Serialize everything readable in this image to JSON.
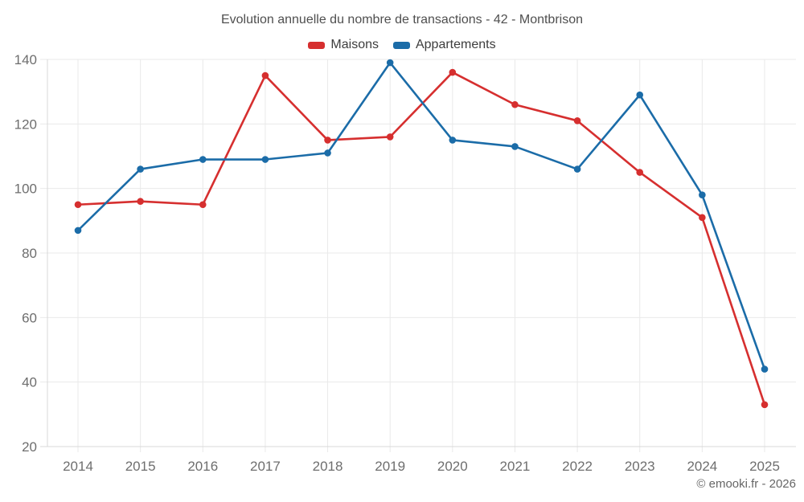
{
  "chart": {
    "title": "Evolution annuelle du nombre de transactions - 42 - Montbrison",
    "copyright": "© emooki.fr - 2026"
  },
  "chart_data": {
    "type": "line",
    "title": "Evolution annuelle du nombre de transactions - 42 - Montbrison",
    "categories": [
      "2014",
      "2015",
      "2016",
      "2017",
      "2018",
      "2019",
      "2020",
      "2021",
      "2022",
      "2023",
      "2024",
      "2025"
    ],
    "series": [
      {
        "name": "Maisons",
        "color": "#d62f2f",
        "values": [
          95,
          96,
          95,
          135,
          115,
          116,
          136,
          126,
          121,
          105,
          91,
          33
        ]
      },
      {
        "name": "Appartements",
        "color": "#1b6ca8",
        "values": [
          87,
          106,
          109,
          109,
          111,
          139,
          115,
          113,
          106,
          129,
          98,
          44
        ]
      }
    ],
    "xlabel": "",
    "ylabel": "",
    "ylim": [
      20,
      140
    ],
    "yticks": [
      20,
      40,
      60,
      80,
      100,
      120,
      140
    ],
    "grid": true,
    "legend_position": "top",
    "marker": "circle"
  },
  "colors": {
    "grid": "#e9e9e9",
    "axis": "#d8d8d8",
    "tick_label": "#6e6e6e",
    "title_text": "#4f4f4f",
    "legend_text": "#3d3d3d"
  }
}
